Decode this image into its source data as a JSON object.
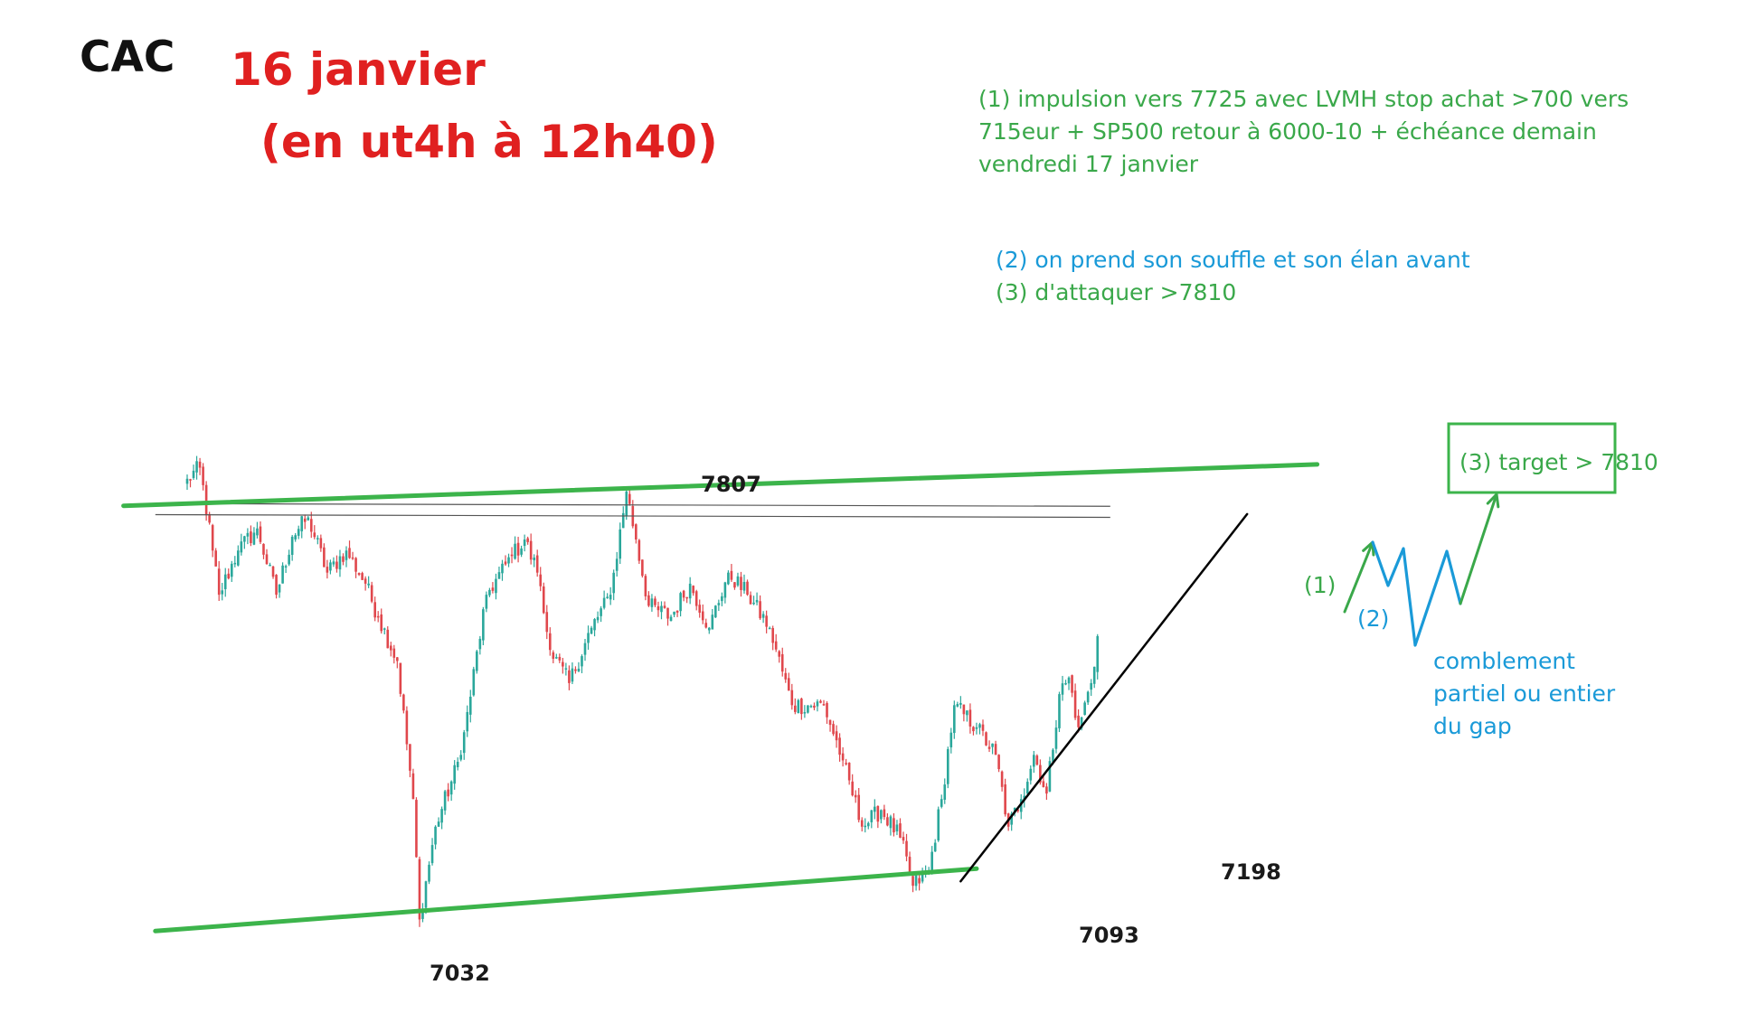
{
  "header": {
    "index": "CAC",
    "date": "16 janvier",
    "subtitle": "(en ut4h à 12h40)"
  },
  "notes": {
    "impulse_line1": "(1) impulsion vers 7725 avec LVMH stop achat >700 vers",
    "impulse_line2": "715eur + SP500 retour  à 6000-10 + échéance demain",
    "impulse_line3": "vendredi 17 janvier",
    "pause_line": "(2) on prend son souffle et son élan avant",
    "attack_line": "(3) d'attaquer >7810"
  },
  "annotations": {
    "level_high": "7807",
    "level_low1": "7032",
    "level_low2": "7093",
    "level_trend": "7198",
    "step1": "(1)",
    "step2": "(2)",
    "target": "(3) target   > 7810",
    "gap_line1": "comblement",
    "gap_line2": "partiel ou entier",
    "gap_line3": "du gap"
  },
  "colors": {
    "up": "#2aa79b",
    "down": "#e0474c",
    "channel": "#3cb44b",
    "trend": "#000000",
    "scenario_green": "#3aa84a",
    "scenario_blue": "#1a9ad8",
    "title_red": "#e02020"
  },
  "chart_data": {
    "type": "candlestick",
    "timeframe": "4h",
    "ylim": [
      7000,
      7900
    ],
    "keypoints": [
      {
        "i": 0,
        "price": 7830
      },
      {
        "i": 4,
        "price": 7850
      },
      {
        "i": 8,
        "price": 7700
      },
      {
        "i": 10,
        "price": 7620
      },
      {
        "i": 16,
        "price": 7700
      },
      {
        "i": 22,
        "price": 7740
      },
      {
        "i": 28,
        "price": 7620
      },
      {
        "i": 33,
        "price": 7725
      },
      {
        "i": 38,
        "price": 7760
      },
      {
        "i": 44,
        "price": 7660
      },
      {
        "i": 50,
        "price": 7700
      },
      {
        "i": 56,
        "price": 7640
      },
      {
        "i": 60,
        "price": 7580
      },
      {
        "i": 66,
        "price": 7500
      },
      {
        "i": 71,
        "price": 7250
      },
      {
        "i": 73,
        "price": 7032
      },
      {
        "i": 78,
        "price": 7200
      },
      {
        "i": 86,
        "price": 7330
      },
      {
        "i": 94,
        "price": 7620
      },
      {
        "i": 102,
        "price": 7690
      },
      {
        "i": 106,
        "price": 7720
      },
      {
        "i": 110,
        "price": 7660
      },
      {
        "i": 114,
        "price": 7520
      },
      {
        "i": 120,
        "price": 7460
      },
      {
        "i": 127,
        "price": 7560
      },
      {
        "i": 133,
        "price": 7620
      },
      {
        "i": 138,
        "price": 7807
      },
      {
        "i": 141,
        "price": 7720
      },
      {
        "i": 145,
        "price": 7600
      },
      {
        "i": 152,
        "price": 7580
      },
      {
        "i": 158,
        "price": 7640
      },
      {
        "i": 164,
        "price": 7560
      },
      {
        "i": 170,
        "price": 7660
      },
      {
        "i": 176,
        "price": 7620
      },
      {
        "i": 183,
        "price": 7560
      },
      {
        "i": 190,
        "price": 7420
      },
      {
        "i": 200,
        "price": 7420
      },
      {
        "i": 206,
        "price": 7320
      },
      {
        "i": 212,
        "price": 7200
      },
      {
        "i": 218,
        "price": 7230
      },
      {
        "i": 224,
        "price": 7180
      },
      {
        "i": 228,
        "price": 7093
      },
      {
        "i": 233,
        "price": 7120
      },
      {
        "i": 237,
        "price": 7250
      },
      {
        "i": 241,
        "price": 7420
      },
      {
        "i": 248,
        "price": 7380
      },
      {
        "i": 254,
        "price": 7330
      },
      {
        "i": 258,
        "price": 7200
      },
      {
        "i": 262,
        "price": 7250
      },
      {
        "i": 266,
        "price": 7330
      },
      {
        "i": 270,
        "price": 7260
      },
      {
        "i": 274,
        "price": 7440
      },
      {
        "i": 277,
        "price": 7470
      },
      {
        "i": 280,
        "price": 7380
      },
      {
        "i": 284,
        "price": 7460
      },
      {
        "i": 286,
        "price": 7545
      }
    ],
    "horizontal_levels": [
      7785,
      7765
    ],
    "channel_upper": [
      {
        "i": -20,
        "price": 7781
      },
      {
        "i": 355,
        "price": 7856
      }
    ],
    "channel_lower": [
      {
        "i": -10,
        "price": 7011
      },
      {
        "i": 248,
        "price": 7124
      }
    ],
    "trendline": [
      {
        "i": 243,
        "price": 7101
      },
      {
        "i": 333,
        "price": 7766
      }
    ]
  }
}
